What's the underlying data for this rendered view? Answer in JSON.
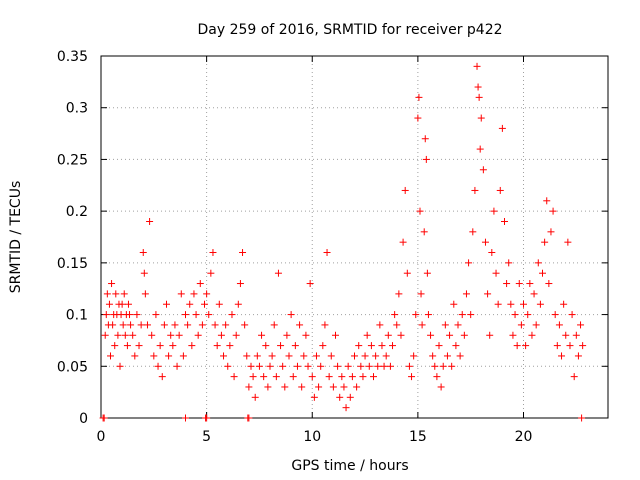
{
  "chart_data": {
    "type": "scatter",
    "title": "Day 259 of 2016, SRMTID for receiver p422",
    "xlabel": "GPS time / hours",
    "ylabel": "SRMTID / TECUs",
    "xlim": [
      0,
      24
    ],
    "ylim": [
      0,
      0.35
    ],
    "xticks": [
      0,
      5,
      10,
      15,
      20
    ],
    "yticks": [
      0,
      0.05,
      0.1,
      0.15,
      0.2,
      0.25,
      0.3,
      0.35
    ],
    "xtick_labels": [
      "0",
      "5",
      "10",
      "15",
      "20"
    ],
    "ytick_labels": [
      "0",
      "0.05",
      "0.1",
      "0.15",
      "0.2",
      "0.25",
      "0.3",
      "0.35"
    ],
    "grid": true,
    "marker": "+",
    "color": "#ff0000",
    "series": [
      {
        "name": "SRMTID",
        "points": [
          [
            0.1,
            0.0
          ],
          [
            0.15,
            0.0
          ],
          [
            4.0,
            0.0
          ],
          [
            4.95,
            0.0
          ],
          [
            5.0,
            0.0
          ],
          [
            6.95,
            0.0
          ],
          [
            7.0,
            0.0
          ],
          [
            22.75,
            0.0
          ],
          [
            0.2,
            0.08
          ],
          [
            0.25,
            0.1
          ],
          [
            0.3,
            0.12
          ],
          [
            0.35,
            0.09
          ],
          [
            0.4,
            0.11
          ],
          [
            0.45,
            0.06
          ],
          [
            0.5,
            0.13
          ],
          [
            0.55,
            0.09
          ],
          [
            0.6,
            0.1
          ],
          [
            0.65,
            0.07
          ],
          [
            0.7,
            0.12
          ],
          [
            0.75,
            0.1
          ],
          [
            0.8,
            0.08
          ],
          [
            0.85,
            0.11
          ],
          [
            0.9,
            0.05
          ],
          [
            0.95,
            0.1
          ],
          [
            1.0,
            0.11
          ],
          [
            1.05,
            0.09
          ],
          [
            1.1,
            0.12
          ],
          [
            1.15,
            0.08
          ],
          [
            1.2,
            0.1
          ],
          [
            1.25,
            0.07
          ],
          [
            1.3,
            0.11
          ],
          [
            1.35,
            0.1
          ],
          [
            1.4,
            0.09
          ],
          [
            1.5,
            0.08
          ],
          [
            1.6,
            0.06
          ],
          [
            1.7,
            0.1
          ],
          [
            1.8,
            0.07
          ],
          [
            1.9,
            0.09
          ],
          [
            2.0,
            0.16
          ],
          [
            2.05,
            0.14
          ],
          [
            2.1,
            0.12
          ],
          [
            2.2,
            0.09
          ],
          [
            2.3,
            0.19
          ],
          [
            2.4,
            0.08
          ],
          [
            2.5,
            0.06
          ],
          [
            2.6,
            0.1
          ],
          [
            2.7,
            0.05
          ],
          [
            2.8,
            0.07
          ],
          [
            2.9,
            0.04
          ],
          [
            3.0,
            0.09
          ],
          [
            3.1,
            0.11
          ],
          [
            3.2,
            0.06
          ],
          [
            3.3,
            0.08
          ],
          [
            3.4,
            0.07
          ],
          [
            3.5,
            0.09
          ],
          [
            3.6,
            0.05
          ],
          [
            3.7,
            0.08
          ],
          [
            3.8,
            0.12
          ],
          [
            3.9,
            0.06
          ],
          [
            4.0,
            0.1
          ],
          [
            4.1,
            0.09
          ],
          [
            4.2,
            0.11
          ],
          [
            4.3,
            0.07
          ],
          [
            4.4,
            0.12
          ],
          [
            4.5,
            0.1
          ],
          [
            4.6,
            0.08
          ],
          [
            4.7,
            0.13
          ],
          [
            4.8,
            0.09
          ],
          [
            4.9,
            0.11
          ],
          [
            5.0,
            0.12
          ],
          [
            5.1,
            0.1
          ],
          [
            5.2,
            0.14
          ],
          [
            5.3,
            0.16
          ],
          [
            5.4,
            0.09
          ],
          [
            5.5,
            0.07
          ],
          [
            5.6,
            0.11
          ],
          [
            5.7,
            0.08
          ],
          [
            5.8,
            0.06
          ],
          [
            5.9,
            0.09
          ],
          [
            6.0,
            0.05
          ],
          [
            6.1,
            0.07
          ],
          [
            6.2,
            0.1
          ],
          [
            6.3,
            0.04
          ],
          [
            6.4,
            0.08
          ],
          [
            6.5,
            0.11
          ],
          [
            6.6,
            0.13
          ],
          [
            6.7,
            0.16
          ],
          [
            6.8,
            0.09
          ],
          [
            6.9,
            0.06
          ],
          [
            7.0,
            0.03
          ],
          [
            7.1,
            0.05
          ],
          [
            7.2,
            0.04
          ],
          [
            7.3,
            0.02
          ],
          [
            7.4,
            0.06
          ],
          [
            7.5,
            0.05
          ],
          [
            7.6,
            0.08
          ],
          [
            7.7,
            0.04
          ],
          [
            7.8,
            0.07
          ],
          [
            7.9,
            0.03
          ],
          [
            8.0,
            0.05
          ],
          [
            8.1,
            0.06
          ],
          [
            8.2,
            0.09
          ],
          [
            8.3,
            0.04
          ],
          [
            8.4,
            0.14
          ],
          [
            8.5,
            0.07
          ],
          [
            8.6,
            0.05
          ],
          [
            8.7,
            0.03
          ],
          [
            8.8,
            0.08
          ],
          [
            8.9,
            0.06
          ],
          [
            9.0,
            0.1
          ],
          [
            9.1,
            0.04
          ],
          [
            9.2,
            0.07
          ],
          [
            9.3,
            0.05
          ],
          [
            9.4,
            0.09
          ],
          [
            9.5,
            0.03
          ],
          [
            9.6,
            0.06
          ],
          [
            9.7,
            0.08
          ],
          [
            9.8,
            0.05
          ],
          [
            9.9,
            0.13
          ],
          [
            10.0,
            0.04
          ],
          [
            10.1,
            0.02
          ],
          [
            10.2,
            0.06
          ],
          [
            10.3,
            0.03
          ],
          [
            10.4,
            0.05
          ],
          [
            10.5,
            0.07
          ],
          [
            10.6,
            0.09
          ],
          [
            10.7,
            0.16
          ],
          [
            10.8,
            0.04
          ],
          [
            10.9,
            0.06
          ],
          [
            11.0,
            0.03
          ],
          [
            11.1,
            0.08
          ],
          [
            11.2,
            0.05
          ],
          [
            11.3,
            0.02
          ],
          [
            11.4,
            0.04
          ],
          [
            11.5,
            0.03
          ],
          [
            11.6,
            0.01
          ],
          [
            11.7,
            0.05
          ],
          [
            11.8,
            0.02
          ],
          [
            11.9,
            0.04
          ],
          [
            12.0,
            0.06
          ],
          [
            12.1,
            0.03
          ],
          [
            12.2,
            0.07
          ],
          [
            12.3,
            0.05
          ],
          [
            12.4,
            0.04
          ],
          [
            12.5,
            0.06
          ],
          [
            12.6,
            0.08
          ],
          [
            12.7,
            0.05
          ],
          [
            12.8,
            0.07
          ],
          [
            12.9,
            0.04
          ],
          [
            13.0,
            0.06
          ],
          [
            13.1,
            0.05
          ],
          [
            13.2,
            0.09
          ],
          [
            13.3,
            0.07
          ],
          [
            13.4,
            0.05
          ],
          [
            13.5,
            0.06
          ],
          [
            13.6,
            0.08
          ],
          [
            13.7,
            0.05
          ],
          [
            13.8,
            0.07
          ],
          [
            13.9,
            0.1
          ],
          [
            14.0,
            0.09
          ],
          [
            14.1,
            0.12
          ],
          [
            14.2,
            0.08
          ],
          [
            14.3,
            0.17
          ],
          [
            14.4,
            0.22
          ],
          [
            14.5,
            0.14
          ],
          [
            14.6,
            0.05
          ],
          [
            14.7,
            0.04
          ],
          [
            14.8,
            0.06
          ],
          [
            14.9,
            0.1
          ],
          [
            15.0,
            0.29
          ],
          [
            15.05,
            0.31
          ],
          [
            15.1,
            0.2
          ],
          [
            15.15,
            0.12
          ],
          [
            15.2,
            0.09
          ],
          [
            15.3,
            0.18
          ],
          [
            15.35,
            0.27
          ],
          [
            15.4,
            0.25
          ],
          [
            15.45,
            0.14
          ],
          [
            15.5,
            0.1
          ],
          [
            15.6,
            0.08
          ],
          [
            15.7,
            0.06
          ],
          [
            15.8,
            0.05
          ],
          [
            15.9,
            0.04
          ],
          [
            16.0,
            0.07
          ],
          [
            16.1,
            0.03
          ],
          [
            16.2,
            0.05
          ],
          [
            16.3,
            0.09
          ],
          [
            16.4,
            0.06
          ],
          [
            16.5,
            0.08
          ],
          [
            16.6,
            0.05
          ],
          [
            16.7,
            0.11
          ],
          [
            16.8,
            0.07
          ],
          [
            16.9,
            0.09
          ],
          [
            17.0,
            0.06
          ],
          [
            17.1,
            0.1
          ],
          [
            17.2,
            0.08
          ],
          [
            17.3,
            0.12
          ],
          [
            17.4,
            0.15
          ],
          [
            17.5,
            0.1
          ],
          [
            17.6,
            0.18
          ],
          [
            17.7,
            0.22
          ],
          [
            17.8,
            0.34
          ],
          [
            17.85,
            0.32
          ],
          [
            17.9,
            0.31
          ],
          [
            17.95,
            0.26
          ],
          [
            18.0,
            0.29
          ],
          [
            18.1,
            0.24
          ],
          [
            18.2,
            0.17
          ],
          [
            18.3,
            0.12
          ],
          [
            18.4,
            0.08
          ],
          [
            18.5,
            0.16
          ],
          [
            18.6,
            0.2
          ],
          [
            18.7,
            0.14
          ],
          [
            18.8,
            0.11
          ],
          [
            18.9,
            0.22
          ],
          [
            19.0,
            0.28
          ],
          [
            19.1,
            0.19
          ],
          [
            19.2,
            0.13
          ],
          [
            19.3,
            0.15
          ],
          [
            19.4,
            0.11
          ],
          [
            19.5,
            0.08
          ],
          [
            19.6,
            0.1
          ],
          [
            19.7,
            0.07
          ],
          [
            19.8,
            0.13
          ],
          [
            19.9,
            0.09
          ],
          [
            20.0,
            0.11
          ],
          [
            20.1,
            0.07
          ],
          [
            20.2,
            0.1
          ],
          [
            20.3,
            0.13
          ],
          [
            20.4,
            0.08
          ],
          [
            20.5,
            0.12
          ],
          [
            20.6,
            0.09
          ],
          [
            20.7,
            0.15
          ],
          [
            20.8,
            0.11
          ],
          [
            20.9,
            0.14
          ],
          [
            21.0,
            0.17
          ],
          [
            21.1,
            0.21
          ],
          [
            21.2,
            0.13
          ],
          [
            21.3,
            0.18
          ],
          [
            21.4,
            0.2
          ],
          [
            21.5,
            0.1
          ],
          [
            21.6,
            0.07
          ],
          [
            21.7,
            0.09
          ],
          [
            21.8,
            0.06
          ],
          [
            21.9,
            0.11
          ],
          [
            22.0,
            0.08
          ],
          [
            22.1,
            0.17
          ],
          [
            22.2,
            0.07
          ],
          [
            22.3,
            0.1
          ],
          [
            22.4,
            0.04
          ],
          [
            22.5,
            0.08
          ],
          [
            22.6,
            0.06
          ],
          [
            22.7,
            0.09
          ],
          [
            22.8,
            0.07
          ]
        ]
      }
    ]
  }
}
